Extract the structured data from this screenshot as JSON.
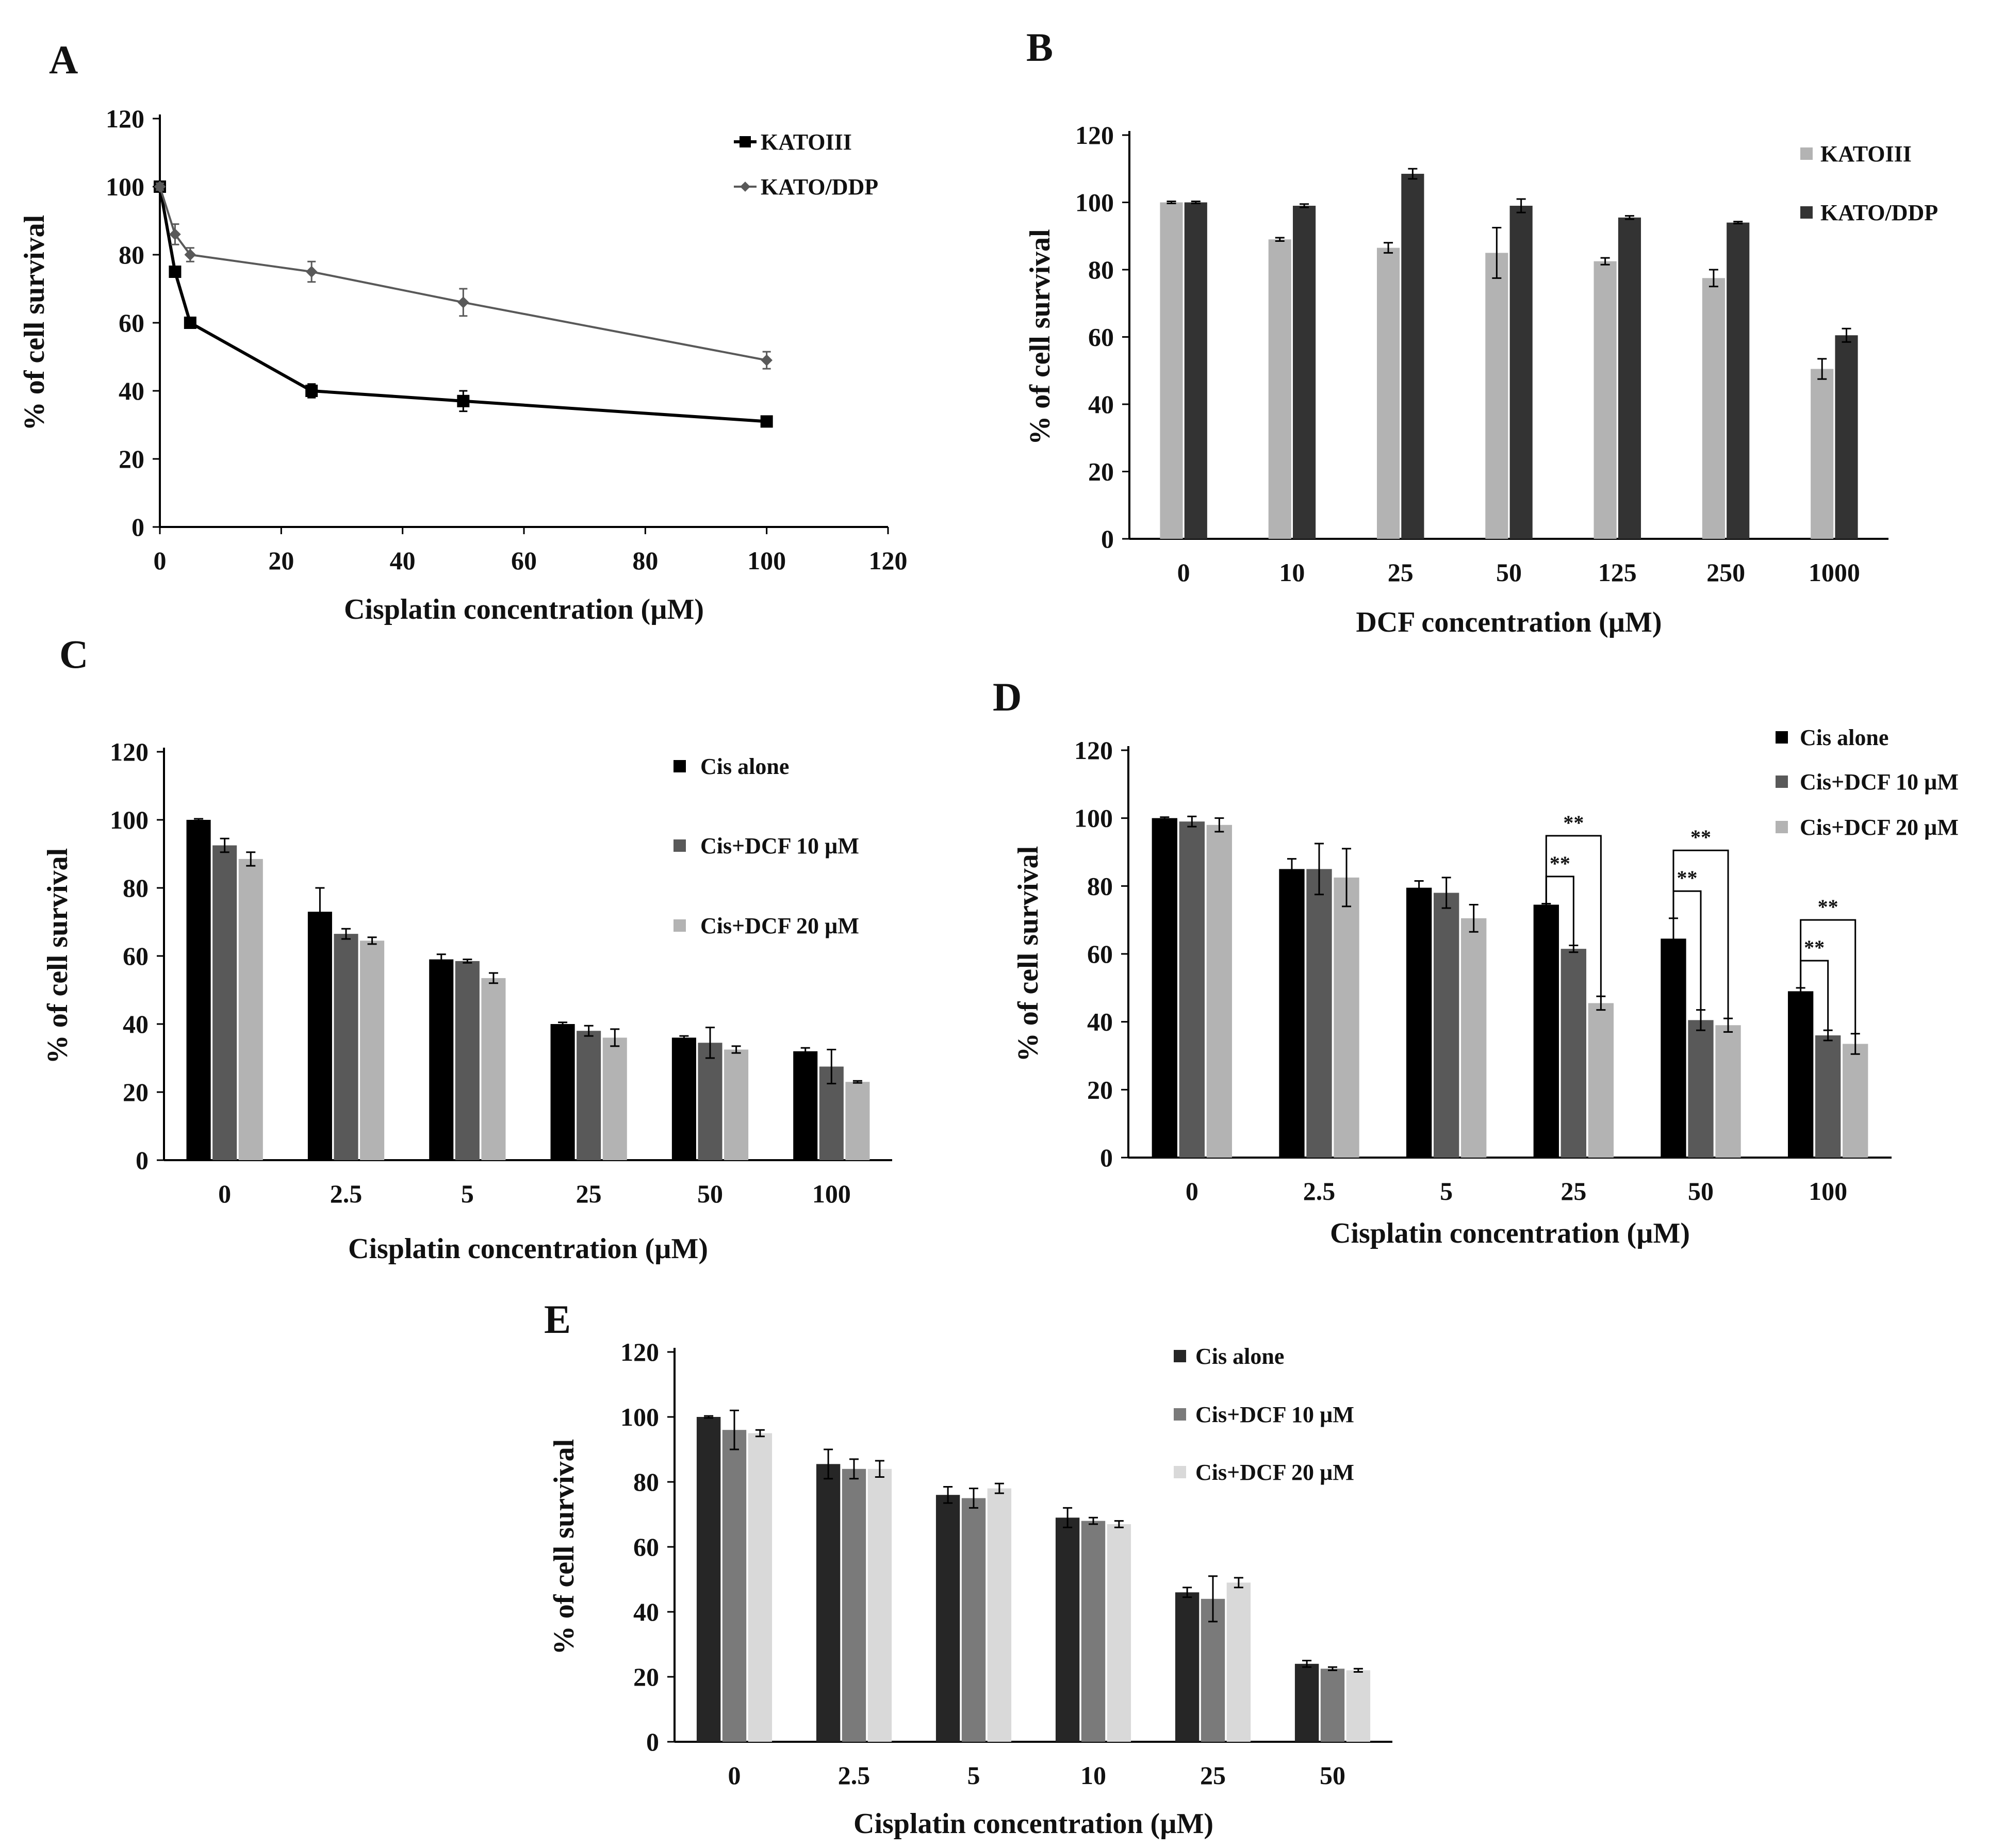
{
  "chart_data": [
    {
      "panel": "A",
      "type": "line",
      "title": "",
      "xlabel": "Cisplatin concentration (µM)",
      "ylabel": "% of cell survival",
      "xlim": [
        0,
        120
      ],
      "ylim": [
        0,
        120
      ],
      "xticks": [
        0,
        20,
        40,
        60,
        80,
        100,
        120
      ],
      "yticks": [
        0,
        20,
        40,
        60,
        80,
        100,
        120
      ],
      "legend_position": "top-right",
      "series": [
        {
          "name": "KATOIII",
          "marker": "square",
          "color": "#000000",
          "x": [
            0,
            2.5,
            5,
            25,
            50,
            100
          ],
          "y": [
            100,
            75,
            60,
            40,
            37,
            31
          ],
          "err": [
            1,
            1.5,
            1,
            2,
            3,
            1.5
          ]
        },
        {
          "name": "KATO/DDP",
          "marker": "diamond",
          "color": "#595959",
          "x": [
            0,
            2.5,
            5,
            25,
            50,
            100
          ],
          "y": [
            100,
            86,
            80,
            75,
            66,
            49
          ],
          "err": [
            1,
            3,
            2,
            3,
            4,
            2.5
          ]
        }
      ]
    },
    {
      "panel": "B",
      "type": "bar",
      "title": "",
      "xlabel": "DCF concentration  (µM)",
      "ylabel": "% of cell survival",
      "ylim": [
        0,
        120
      ],
      "yticks": [
        0,
        20,
        40,
        60,
        80,
        100,
        120
      ],
      "legend_position": "top-right",
      "categories": [
        "0",
        "10",
        "25",
        "50",
        "125",
        "250",
        "1000"
      ],
      "series": [
        {
          "name": "KATOIII",
          "color": "#b3b3b3",
          "values": [
            100,
            89,
            86.5,
            85,
            82.5,
            77.5,
            50.5
          ],
          "err": [
            0.3,
            0.5,
            1.5,
            7.5,
            1,
            2.5,
            3
          ]
        },
        {
          "name": "KATO/DDP",
          "color": "#333333",
          "values": [
            100,
            99,
            108.5,
            99,
            95.5,
            94,
            60.5
          ],
          "err": [
            0.3,
            0.5,
            1.5,
            2,
            0.5,
            0.3,
            2
          ]
        }
      ]
    },
    {
      "panel": "C",
      "type": "bar",
      "title": "",
      "xlabel": "Cisplatin concentration (µM)",
      "ylabel": "% of cell survival",
      "ylim": [
        0,
        120
      ],
      "yticks": [
        0,
        20,
        40,
        60,
        80,
        100,
        120
      ],
      "legend_position": "top-right",
      "categories": [
        "0",
        "2.5",
        "5",
        "25",
        "50",
        "100"
      ],
      "series": [
        {
          "name": "Cis alone",
          "color": "#000000",
          "values": [
            100,
            73,
            59,
            40,
            36,
            32
          ],
          "err": [
            0.3,
            7,
            1.5,
            0.5,
            0.5,
            1
          ]
        },
        {
          "name": "Cis+DCF 10 µM",
          "color": "#595959",
          "values": [
            92.5,
            66.5,
            58.5,
            38,
            34.5,
            27.5
          ],
          "err": [
            2,
            1.5,
            0.5,
            1.5,
            4.5,
            5
          ]
        },
        {
          "name": "Cis+DCF 20 µM",
          "color": "#b3b3b3",
          "values": [
            88.5,
            64.5,
            53.5,
            36,
            32.5,
            23
          ],
          "err": [
            2,
            1,
            1.5,
            2.5,
            1,
            0.3
          ]
        }
      ]
    },
    {
      "panel": "D",
      "type": "bar",
      "title": "",
      "xlabel": "Cisplatin concentration (µM)",
      "ylabel": "% of cell survival",
      "ylim": [
        0,
        120
      ],
      "yticks": [
        0,
        20,
        40,
        60,
        80,
        100,
        120
      ],
      "legend_position": "top-right",
      "categories": [
        "0",
        "2.5",
        "5",
        "25",
        "50",
        "100"
      ],
      "series": [
        {
          "name": "Cis alone",
          "color": "#000000",
          "values": [
            100,
            85,
            79.5,
            74.5,
            64.5,
            49
          ],
          "err": [
            0.3,
            3,
            2,
            0.3,
            6,
            1
          ]
        },
        {
          "name": "Cis+DCF 10 µM",
          "color": "#595959",
          "values": [
            99,
            85,
            78,
            61.5,
            40.5,
            36
          ],
          "err": [
            1.5,
            7.5,
            4.5,
            1,
            3,
            1.5
          ]
        },
        {
          "name": "Cis+DCF 20 µM",
          "color": "#b3b3b3",
          "values": [
            98,
            82.5,
            70.5,
            45.5,
            39,
            33.5
          ],
          "err": [
            2,
            8.5,
            4,
            2,
            2,
            3
          ]
        }
      ],
      "significance": [
        {
          "category": "25",
          "compare": "Cis+DCF 10 µM",
          "label": "**"
        },
        {
          "category": "25",
          "compare": "Cis+DCF 20 µM",
          "label": "**"
        },
        {
          "category": "50",
          "compare": "Cis+DCF 10 µM",
          "label": "**"
        },
        {
          "category": "50",
          "compare": "Cis+DCF 20 µM",
          "label": "**"
        },
        {
          "category": "100",
          "compare": "Cis+DCF 10 µM",
          "label": "**"
        },
        {
          "category": "100",
          "compare": "Cis+DCF 20 µM",
          "label": "**"
        }
      ]
    },
    {
      "panel": "E",
      "type": "bar",
      "title": "",
      "xlabel": "Cisplatin  concentration  (µM)",
      "ylabel": "% of cell survival",
      "ylim": [
        0,
        120
      ],
      "yticks": [
        0,
        20,
        40,
        60,
        80,
        100,
        120
      ],
      "legend_position": "top-right",
      "categories": [
        "0",
        "2.5",
        "5",
        "10",
        "25",
        "50"
      ],
      "series": [
        {
          "name": "Cis alone",
          "color": "#262626",
          "values": [
            100,
            85.5,
            76,
            69,
            46,
            24
          ],
          "err": [
            0.3,
            4.5,
            2.5,
            3,
            1.5,
            1
          ]
        },
        {
          "name": "Cis+DCF 10 µM",
          "color": "#7a7a7a",
          "values": [
            96,
            84,
            75,
            68,
            44,
            22.5
          ],
          "err": [
            6,
            3,
            3,
            1,
            7,
            0.5
          ]
        },
        {
          "name": "Cis+DCF 20 µM",
          "color": "#d9d9d9",
          "values": [
            95,
            84,
            78,
            67,
            49,
            22
          ],
          "err": [
            1,
            2.5,
            1.5,
            1,
            1.5,
            0.5
          ]
        }
      ]
    }
  ]
}
